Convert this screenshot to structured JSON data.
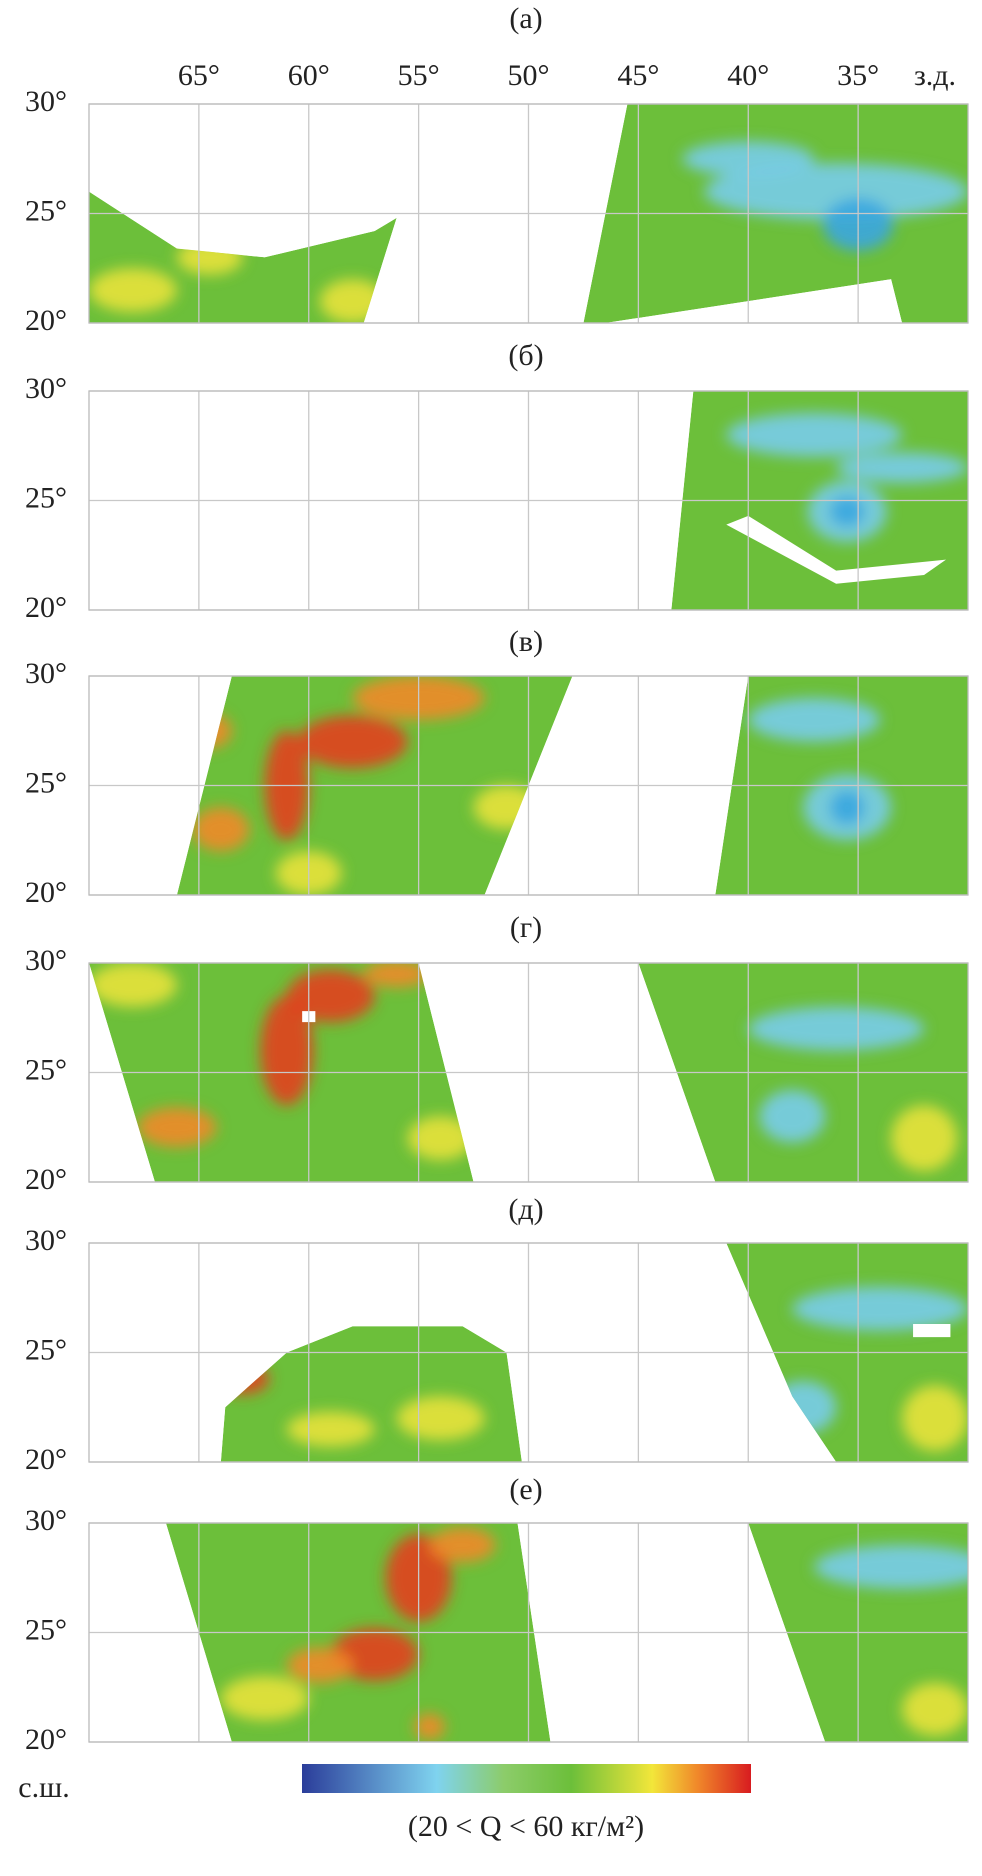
{
  "panels": [
    {
      "label": "(а)"
    },
    {
      "label": "(б)"
    },
    {
      "label": "(в)"
    },
    {
      "label": "(г)"
    },
    {
      "label": "(д)"
    },
    {
      "label": "(е)"
    }
  ],
  "lon_ticks": [
    {
      "value": 65,
      "label": "65°"
    },
    {
      "value": 60,
      "label": "60°"
    },
    {
      "value": 55,
      "label": "55°"
    },
    {
      "value": 50,
      "label": "50°"
    },
    {
      "value": 45,
      "label": "45°"
    },
    {
      "value": 40,
      "label": "40°"
    },
    {
      "value": 35,
      "label": "35°"
    }
  ],
  "lon_unit": "з.д.",
  "lat_ticks": [
    {
      "value": 30,
      "label": "30°"
    },
    {
      "value": 25,
      "label": "25°"
    },
    {
      "value": 20,
      "label": "20°"
    }
  ],
  "lat_unit": "с.ш.",
  "xlim": [
    70,
    30
  ],
  "ylim": [
    20,
    30
  ],
  "colorbar_caption": "(20 < Q < 60 кг/м²)"
}
